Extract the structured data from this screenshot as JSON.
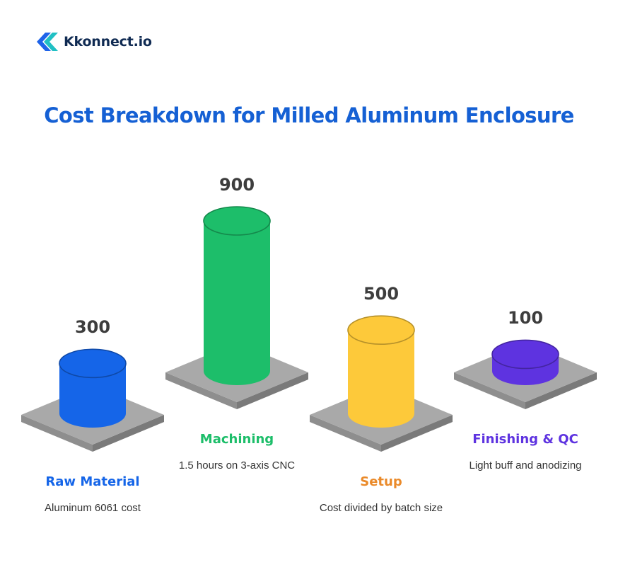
{
  "brand": {
    "name": "Kkonnect.io",
    "logo_icon": "double-chevron-logo-icon",
    "logo_colors": [
      "#1e63e9",
      "#20c0c4"
    ]
  },
  "title": "Cost Breakdown for Milled Aluminum Enclosure",
  "chart_data": {
    "type": "bar",
    "style": "3d-cylinder-on-platform",
    "title": "Cost Breakdown for Milled Aluminum Enclosure",
    "xlabel": "",
    "ylabel": "",
    "categories": [
      "Raw Material",
      "Machining",
      "Setup",
      "Finishing & QC"
    ],
    "values": [
      300,
      900,
      500,
      100
    ],
    "value_labels": [
      "300",
      "900",
      "500",
      "100"
    ],
    "descriptions": [
      "Aluminum 6061 cost",
      "1.5 hours on 3-axis CNC",
      "Cost divided by batch size",
      "Light buff and anodizing"
    ],
    "colors": [
      "#1565e8",
      "#1dbe6a",
      "#fdc93a",
      "#5e33e0"
    ],
    "label_colors": [
      "#1565e8",
      "#1dbe6a",
      "#ea8a2a",
      "#5e33e0"
    ],
    "grid": false,
    "legend": "none"
  }
}
